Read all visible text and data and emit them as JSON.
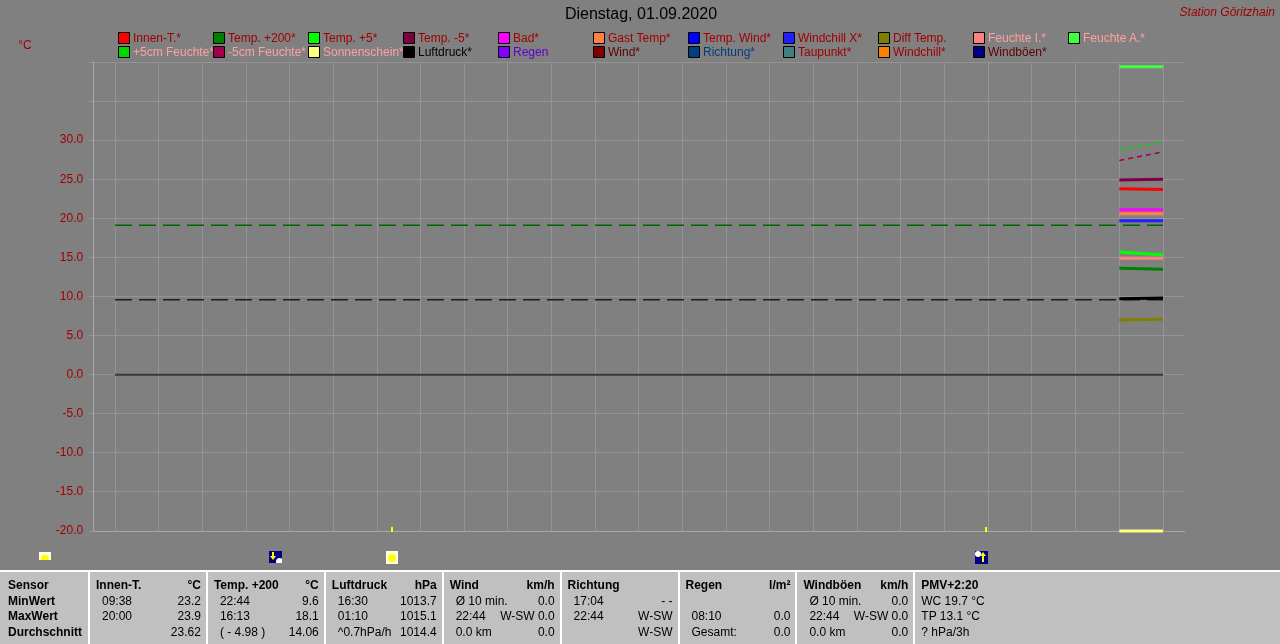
{
  "chart_data": {
    "type": "line",
    "title": "Dienstag, 01.09.2020",
    "ylabel": "°C",
    "categories": [
      null,
      null,
      null,
      null,
      null,
      null,
      null,
      null,
      null,
      null,
      null,
      null,
      null,
      null,
      null,
      null,
      null,
      null,
      null,
      null,
      null,
      null,
      null,
      null,
      null
    ],
    "series": [
      {
        "name": "Innen-T.*",
        "color": "#ff0000",
        "values": [
          null,
          null,
          null,
          null,
          null,
          null,
          null,
          null,
          null,
          null,
          null,
          null,
          null,
          null,
          null,
          null,
          null,
          null,
          null,
          null,
          null,
          null,
          null,
          23.8,
          23.7
        ]
      },
      {
        "name": "Temp. +200*",
        "color": "#008000",
        "values": [
          null,
          null,
          null,
          null,
          null,
          null,
          null,
          null,
          null,
          null,
          null,
          null,
          null,
          null,
          null,
          null,
          null,
          null,
          null,
          null,
          null,
          null,
          null,
          13.6,
          13.5
        ]
      },
      {
        "name": "Temp. +5*",
        "color": "#00ff00",
        "values": [
          null,
          null,
          null,
          null,
          null,
          null,
          null,
          null,
          null,
          null,
          null,
          null,
          null,
          null,
          null,
          null,
          null,
          null,
          null,
          null,
          null,
          null,
          null,
          15.7,
          15.3
        ]
      },
      {
        "name": "Temp. -5*",
        "color": "#800040",
        "values": [
          null,
          null,
          null,
          null,
          null,
          null,
          null,
          null,
          null,
          null,
          null,
          null,
          null,
          null,
          null,
          null,
          null,
          null,
          null,
          null,
          null,
          null,
          null,
          24.9,
          25.0
        ]
      },
      {
        "name": "Bad*",
        "color": "#ff00ff",
        "values": [
          null,
          null,
          null,
          null,
          null,
          null,
          null,
          null,
          null,
          null,
          null,
          null,
          null,
          null,
          null,
          null,
          null,
          null,
          null,
          null,
          null,
          null,
          null,
          21.1,
          21.1
        ]
      },
      {
        "name": "Gast Temp*",
        "color": "#ff8040",
        "values": [
          null,
          null,
          null,
          null,
          null,
          null,
          null,
          null,
          null,
          null,
          null,
          null,
          null,
          null,
          null,
          null,
          null,
          null,
          null,
          null,
          null,
          null,
          null,
          20.6,
          20.6
        ]
      },
      {
        "name": "Temp. Wind*",
        "color": "#0000ff",
        "values": [
          null,
          null,
          null,
          null,
          null,
          null,
          null,
          null,
          null,
          null,
          null,
          null,
          null,
          null,
          null,
          null,
          null,
          null,
          null,
          null,
          null,
          null,
          null,
          null,
          null
        ]
      },
      {
        "name": "Windchill X*",
        "color": "#2020ff",
        "values": [
          null,
          null,
          null,
          null,
          null,
          null,
          null,
          null,
          null,
          null,
          null,
          null,
          null,
          null,
          null,
          null,
          null,
          null,
          null,
          null,
          null,
          null,
          null,
          19.7,
          19.7
        ]
      },
      {
        "name": "Diff Temp.",
        "color": "#808000",
        "values": [
          null,
          null,
          null,
          null,
          null,
          null,
          null,
          null,
          null,
          null,
          null,
          null,
          null,
          null,
          null,
          null,
          null,
          null,
          null,
          null,
          null,
          null,
          null,
          7.0,
          7.1
        ]
      },
      {
        "name": "Feuchte I.*",
        "color": "#ff8080",
        "values": [
          null,
          null,
          null,
          null,
          null,
          null,
          null,
          null,
          null,
          null,
          null,
          null,
          null,
          null,
          null,
          null,
          null,
          null,
          null,
          null,
          null,
          null,
          null,
          14.9,
          14.9
        ]
      },
      {
        "name": "Feuchte A.*",
        "color": "#40ff40",
        "values": [
          null,
          null,
          null,
          null,
          null,
          null,
          null,
          null,
          null,
          null,
          null,
          null,
          null,
          null,
          null,
          null,
          null,
          null,
          null,
          null,
          null,
          null,
          null,
          39.4,
          39.4
        ]
      },
      {
        "name": "+5cm Feuchte*",
        "color": "#00d800",
        "line_style": "dashed",
        "values": [
          null,
          null,
          null,
          null,
          null,
          null,
          null,
          null,
          null,
          null,
          null,
          null,
          null,
          null,
          null,
          null,
          null,
          null,
          null,
          null,
          null,
          null,
          null,
          28.8,
          29.8
        ]
      },
      {
        "name": "-5cm Feuchte*",
        "color": "#a00050",
        "line_style": "dashed",
        "values": [
          null,
          null,
          null,
          null,
          null,
          null,
          null,
          null,
          null,
          null,
          null,
          null,
          null,
          null,
          null,
          null,
          null,
          null,
          null,
          null,
          null,
          null,
          null,
          27.4,
          28.5
        ]
      },
      {
        "name": "Sonnenschein*",
        "color": "#ffff80",
        "values": [
          null,
          null,
          null,
          null,
          null,
          null,
          null,
          null,
          null,
          null,
          null,
          null,
          null,
          null,
          null,
          null,
          null,
          null,
          null,
          null,
          null,
          null,
          null,
          -20.0,
          -20.0
        ]
      },
      {
        "name": "Luftdruck*",
        "color": "#000000",
        "values": [
          null,
          null,
          null,
          null,
          null,
          null,
          null,
          null,
          null,
          null,
          null,
          null,
          null,
          null,
          null,
          null,
          null,
          null,
          null,
          null,
          null,
          null,
          null,
          9.7,
          9.8
        ]
      },
      {
        "name": "Regen",
        "color": "#8000ff",
        "values": [
          null,
          null,
          null,
          null,
          null,
          null,
          null,
          null,
          null,
          null,
          null,
          null,
          null,
          null,
          null,
          null,
          null,
          null,
          null,
          null,
          null,
          null,
          null,
          null,
          null
        ]
      },
      {
        "name": "Wind*",
        "color": "#800000",
        "values": [
          null,
          null,
          null,
          null,
          null,
          null,
          null,
          null,
          null,
          null,
          null,
          null,
          null,
          null,
          null,
          null,
          null,
          null,
          null,
          null,
          null,
          null,
          null,
          null,
          null
        ]
      },
      {
        "name": "Richtung*",
        "color": "#004080",
        "values": [
          null,
          null,
          null,
          null,
          null,
          null,
          null,
          null,
          null,
          null,
          null,
          null,
          null,
          null,
          null,
          null,
          null,
          null,
          null,
          null,
          null,
          null,
          null,
          null,
          null
        ]
      },
      {
        "name": "Taupunkt*",
        "color": "#408080",
        "values": [
          null,
          null,
          null,
          null,
          null,
          null,
          null,
          null,
          null,
          null,
          null,
          null,
          null,
          null,
          null,
          null,
          null,
          null,
          null,
          null,
          null,
          null,
          null,
          null,
          null
        ]
      },
      {
        "name": "Windchill*",
        "color": "#ff8000",
        "values": [
          null,
          null,
          null,
          null,
          null,
          null,
          null,
          null,
          null,
          null,
          null,
          null,
          null,
          null,
          null,
          null,
          null,
          null,
          null,
          null,
          null,
          null,
          null,
          null,
          null
        ]
      },
      {
        "name": "Windböen*",
        "color": "#000080",
        "values": [
          null,
          null,
          null,
          null,
          null,
          null,
          null,
          null,
          null,
          null,
          null,
          null,
          null,
          null,
          null,
          null,
          null,
          null,
          null,
          null,
          null,
          null,
          null,
          null,
          null
        ]
      }
    ],
    "ylim": [
      -20,
      40
    ],
    "yticks": [
      {
        "value": -20,
        "label": "-20.0"
      },
      {
        "value": -15,
        "label": "-15.0"
      },
      {
        "value": -10,
        "label": "-10.0"
      },
      {
        "value": -5,
        "label": "-5.0"
      },
      {
        "value": 0,
        "label": "0.0"
      },
      {
        "value": 5,
        "label": "5.0"
      },
      {
        "value": 10,
        "label": "10.0"
      },
      {
        "value": 15,
        "label": "15.0"
      },
      {
        "value": 20,
        "label": "20.0"
      },
      {
        "value": 25,
        "label": "25.0"
      },
      {
        "value": 30,
        "label": "30.0"
      },
      {
        "value": 35,
        "label": null
      },
      {
        "value": 40,
        "label": null
      }
    ],
    "ref_lines": [
      {
        "axis": "y",
        "value": 19.1,
        "color": "#006400",
        "line_style": "dashed"
      },
      {
        "axis": "y",
        "value": 9.6,
        "color": "#1c1c1c",
        "line_style": "dashed"
      },
      {
        "axis": "y",
        "value": 0,
        "color": "#383838",
        "line_style": "solid"
      }
    ],
    "annotations": [
      "Station Göritzhain",
      "Sensor\nMinWert\nMaxWert\nDurchschnitt",
      "Innen-T.\t°C\n09:38\t23.2\n20:00\t23.9\n\t23.62",
      "Temp. +200\t°C\n22:44\t9.6\n16:13\t18.1\n( - 4.98 )\t14.06",
      "Luftdruck\thPa\n16:30\t1013.7\n01:10\t1015.1\n^0.7hPa/h\t1014.4",
      "Wind\tkm/h\nØ 10 min.\t0.0\n22:44\tW-SW 0.0\n0.0 km\t0.0",
      "Richtung\t\n17:04\t- -\n22:44\tW-SW\n\tW-SW",
      "Regen\tl/m²\n\t\n08:10\t0.0\nGesamt:\t0.0",
      "Windböen\tkm/h\nØ 10 min.\t0.0\n22:44\tW-SW 0.0\n0.0 km\t0.0",
      "PMV+2:20\nWC 19.7 °C\nTP 13.1 °C\n? hPa/3h"
    ],
    "grid": true,
    "legend": "top",
    "marker": "none",
    "tick_labels": "y"
  }
}
